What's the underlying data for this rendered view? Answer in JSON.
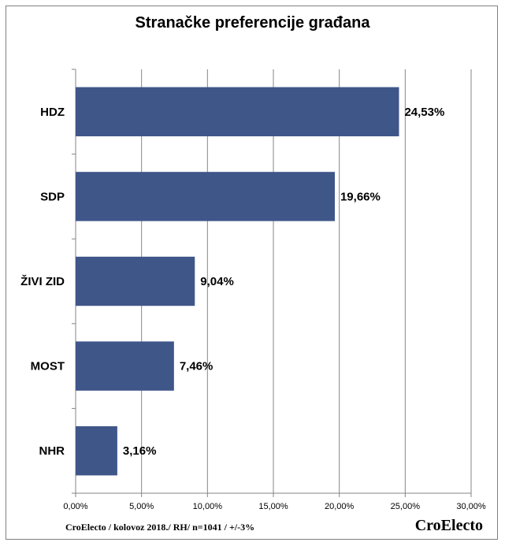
{
  "chart_data": {
    "type": "bar",
    "orientation": "horizontal",
    "title": "Stranačke preferencije građana",
    "categories": [
      "HDZ",
      "SDP",
      "ŽIVI ZID",
      "MOST",
      "NHR"
    ],
    "values": [
      24.53,
      19.66,
      9.04,
      7.46,
      3.16
    ],
    "value_labels": [
      "24,53%",
      "19,66%",
      "9,04%",
      "7,46%",
      "3,16%"
    ],
    "xlim": [
      0,
      30
    ],
    "x_ticks": [
      0,
      5,
      10,
      15,
      20,
      25,
      30
    ],
    "x_tick_labels": [
      "0,00%",
      "5,00%",
      "10,00%",
      "15,00%",
      "20,00%",
      "25,00%",
      "30,00%"
    ],
    "grid": "vertical",
    "legend": "none",
    "bar_color": "#3f5689"
  },
  "footer": {
    "note": "CroElecto / kolovoz 2018./ RH/ n=1041 / +/-3%",
    "brand": "CroElecto"
  }
}
